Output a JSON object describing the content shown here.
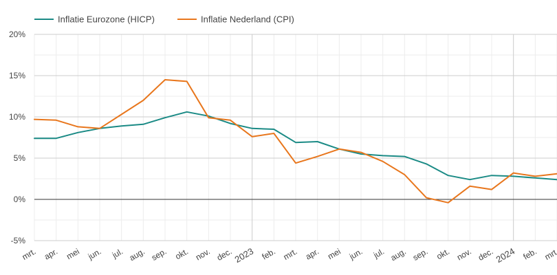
{
  "chart_data": {
    "type": "line",
    "title": "",
    "xlabel": "",
    "ylabel": "",
    "ylim": [
      -5,
      20
    ],
    "yticks": [
      -5,
      0,
      5,
      10,
      15,
      20
    ],
    "ytick_labels": [
      "-5%",
      "0%",
      "5%",
      "10%",
      "15%",
      "20%"
    ],
    "grid": true,
    "legend_position": "top-left",
    "categories": [
      "mrt.",
      "apr.",
      "mei",
      "jun.",
      "jul.",
      "aug.",
      "sep.",
      "okt.",
      "nov.",
      "dec.",
      "2023",
      "feb.",
      "mrt.",
      "apr.",
      "mei",
      "jun.",
      "jul.",
      "aug.",
      "sep.",
      "okt.",
      "nov.",
      "dec.",
      "2024",
      "feb.",
      "mrt."
    ],
    "major_ticks": [
      "2023",
      "2024"
    ],
    "series": [
      {
        "name": "Inflatie Eurozone (HICP)",
        "color": "#1a8a85",
        "values": [
          7.4,
          7.4,
          8.1,
          8.6,
          8.9,
          9.1,
          9.9,
          10.6,
          10.1,
          9.2,
          8.6,
          8.5,
          6.9,
          7.0,
          6.1,
          5.5,
          5.3,
          5.2,
          4.3,
          2.9,
          2.4,
          2.9,
          2.8,
          2.6,
          2.4
        ]
      },
      {
        "name": "Inflatie Nederland (CPI)",
        "color": "#e8761c",
        "values": [
          9.7,
          9.6,
          8.8,
          8.6,
          10.3,
          12.0,
          14.5,
          14.3,
          9.9,
          9.6,
          7.6,
          8.0,
          4.4,
          5.2,
          6.1,
          5.7,
          4.6,
          3.0,
          0.2,
          -0.4,
          1.6,
          1.2,
          3.2,
          2.8,
          3.1
        ]
      }
    ]
  }
}
